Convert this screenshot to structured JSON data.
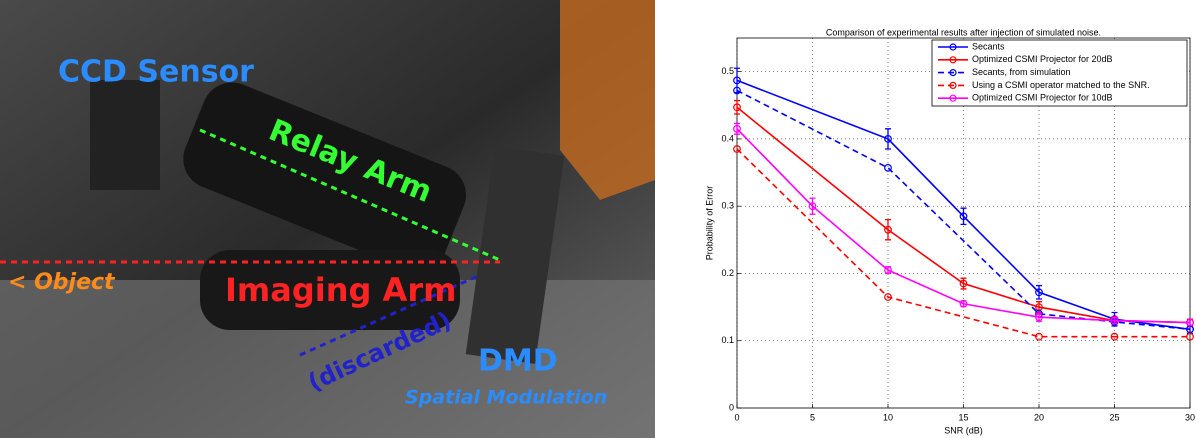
{
  "photo": {
    "labels": [
      "CCD Sensor",
      "Relay Arm",
      "< Object",
      "Imaging Arm",
      "(discarded)",
      "DMD",
      "Spatial Modulation"
    ]
  },
  "chart_data": {
    "type": "line",
    "title": "Comparison of experimental results after injection of simulated noise.",
    "x_label": "SNR (dB)",
    "y_label": "Probability of Error",
    "xlim": [
      0,
      30
    ],
    "ylim": [
      0,
      0.55
    ],
    "xticks": [
      0,
      5,
      10,
      15,
      20,
      25,
      30
    ],
    "yticks": [
      0,
      0.1,
      0.2,
      0.3,
      0.4,
      0.5
    ],
    "grid": true,
    "legend": "upper right",
    "series": [
      {
        "name": "Secants",
        "color": "#0000ff",
        "dashed": false,
        "x": [
          0,
          10,
          15,
          20,
          25,
          30
        ],
        "values": [
          0.487,
          0.4,
          0.285,
          0.172,
          0.132,
          0.117
        ],
        "errors": [
          0.018,
          0.015,
          0.012,
          0.01,
          0.01,
          0.006
        ]
      },
      {
        "name": "Optimized CSMI Projector for 20dB",
        "color": "#ff0000",
        "dashed": false,
        "x": [
          0,
          10,
          15,
          20,
          25,
          30
        ],
        "values": [
          0.447,
          0.265,
          0.185,
          0.15,
          0.13,
          0.127
        ],
        "errors": [
          0.01,
          0.015,
          0.008,
          0.008,
          0.006,
          0.005
        ]
      },
      {
        "name": "Secants, from simulation",
        "color": "#0000ff",
        "dashed": true,
        "x": [
          0,
          10,
          20,
          25,
          30
        ],
        "values": [
          0.472,
          0.357,
          0.14,
          0.128,
          0.117
        ]
      },
      {
        "name": "Using a CSMI operator matched to the SNR.",
        "color": "#ff0000",
        "dashed": true,
        "x": [
          0,
          10,
          20,
          25,
          30
        ],
        "values": [
          0.385,
          0.165,
          0.106,
          0.106,
          0.106
        ]
      },
      {
        "name": "Optimized CSMI Projector for 10dB",
        "color": "#ff00ff",
        "dashed": false,
        "x": [
          0,
          5,
          10,
          15,
          20,
          25,
          30
        ],
        "values": [
          0.415,
          0.3,
          0.205,
          0.155,
          0.135,
          0.13,
          0.127
        ],
        "errors": [
          0.008,
          0.012,
          0.005,
          0.004,
          0.006,
          0.005,
          0.004
        ]
      }
    ]
  }
}
